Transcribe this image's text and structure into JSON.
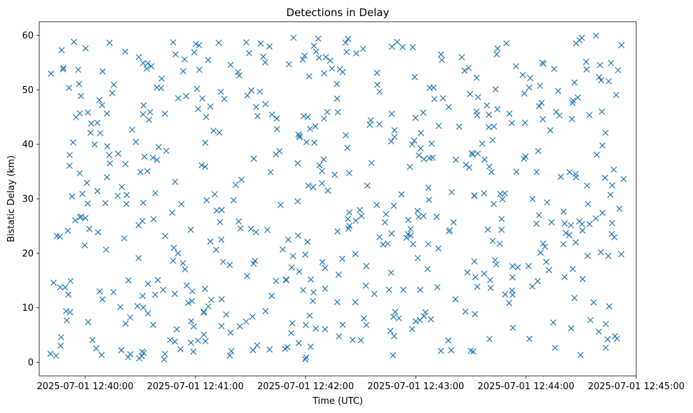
{
  "chart_data": {
    "type": "scatter",
    "title": "Detections in Delay",
    "xlabel": "Time (UTC)",
    "ylabel": "Bistatic Delay (km)",
    "x_format": "datetime",
    "x_start": "2025-07-01 12:39:41",
    "x_end": "2025-07-01 12:45:00",
    "xlim": [
      "2025-07-01 12:39:35",
      "2025-07-01 12:45:00"
    ],
    "ylim": [
      -2.5,
      62.5
    ],
    "x_ticks": [
      "2025-07-01 12:40:00",
      "2025-07-01 12:41:00",
      "2025-07-01 12:42:00",
      "2025-07-01 12:43:00",
      "2025-07-01 12:44:00",
      "2025-07-01 12:45:00"
    ],
    "y_ticks": [
      0,
      10,
      20,
      30,
      40,
      50,
      60
    ],
    "marker": "x",
    "color": "#1f77b4",
    "grid": false,
    "n_points": 600
  }
}
